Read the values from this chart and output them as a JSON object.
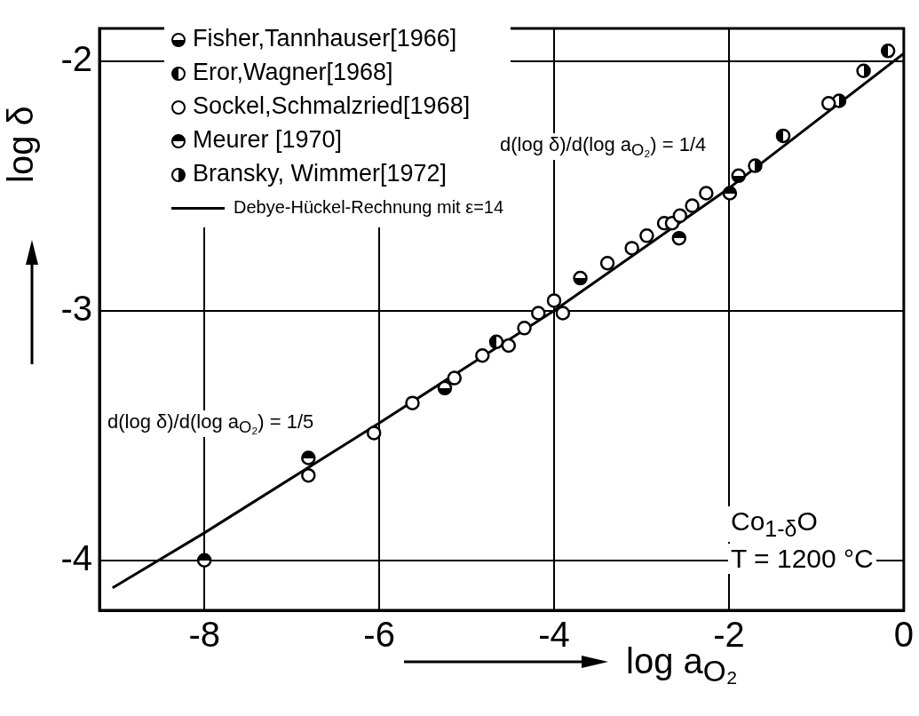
{
  "chart_data": {
    "type": "scatter",
    "xlabel": "log a$_{O₂}$",
    "ylabel": "log δ",
    "xlim": [
      -9.2,
      0
    ],
    "ylim": [
      -4.2,
      -1.87
    ],
    "xticks": [
      -8,
      -6,
      -4,
      -2,
      0
    ],
    "yticks": [
      -2,
      -3,
      -4
    ],
    "grid": true,
    "legend": "top left",
    "marker": "circle",
    "series": [
      {
        "name": "Fisher,Tannhauser[1966]",
        "color": "#000000",
        "x": [
          -5.25,
          -3.7,
          -1.89
        ],
        "values": [
          -3.31,
          -2.87,
          -2.46
        ]
      },
      {
        "name": "Eror,Wagner[1968]",
        "color": "#000000",
        "x": [
          -4.66,
          -1.38,
          -0.18
        ],
        "values": [
          -3.125,
          -2.3,
          -1.96
        ]
      },
      {
        "name": "Sockel,Schmalzried[1968]",
        "color": "#000000",
        "x": [
          -6.81,
          -6.06,
          -5.62,
          -5.14,
          -4.82,
          -4.52,
          -4.34,
          -4.18,
          -4.0,
          -3.9,
          -3.39,
          -3.11,
          -2.94,
          -2.74,
          -2.65,
          -2.56,
          -2.42,
          -2.26,
          -0.86
        ],
        "values": [
          -3.66,
          -3.49,
          -3.37,
          -3.27,
          -3.18,
          -3.14,
          -3.07,
          -3.01,
          -2.96,
          -3.01,
          -2.81,
          -2.75,
          -2.7,
          -2.65,
          -2.65,
          -2.62,
          -2.58,
          -2.53,
          -2.17
        ]
      },
      {
        "name": "Meurer [1970]",
        "color": "#000000",
        "x": [
          -8.0,
          -6.81,
          -2.57,
          -1.99
        ],
        "values": [
          -4.0,
          -3.59,
          -2.71,
          -2.53
        ]
      },
      {
        "name": "Bransky, Wimmer[1972]",
        "color": "#000000",
        "x": [
          -1.7,
          -0.74,
          -0.46
        ],
        "values": [
          -2.42,
          -2.16,
          -2.04
        ]
      },
      {
        "name": "Debye-Hückel-Rechnung mit ε=14",
        "type": "line",
        "marker": "none",
        "color": "#000000",
        "x": [
          -9.05,
          -8,
          -6,
          -4,
          -2,
          0
        ],
        "values": [
          -4.11,
          -3.89,
          -3.45,
          -3.0,
          -2.51,
          -1.97
        ]
      }
    ],
    "annotations": [
      "d(log δ)/d(log a$_{O₂}$) = 1/4",
      "d(log δ)/d(log a$_{O₂}$) = 1/5",
      "Co$_{1-δ}$O",
      "T = 1200 °C"
    ]
  }
}
